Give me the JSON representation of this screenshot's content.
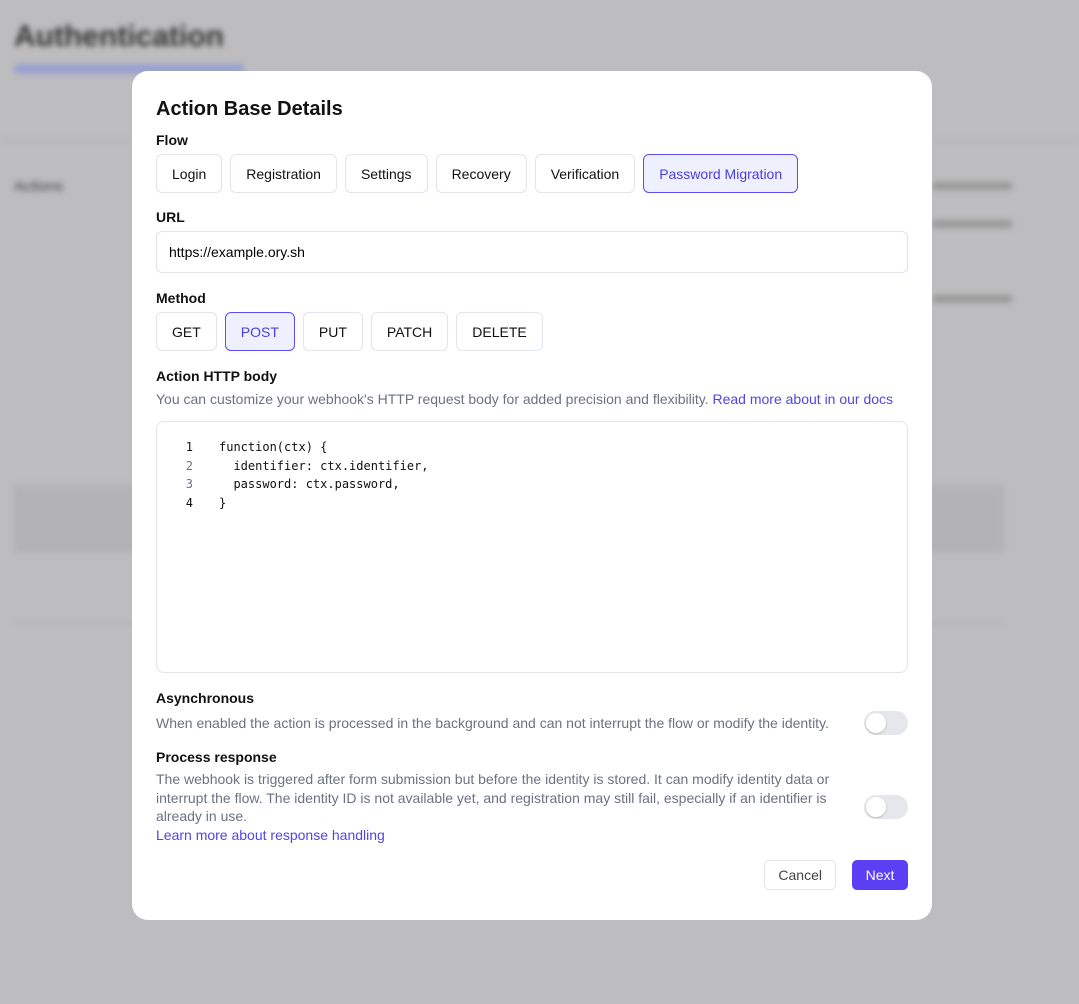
{
  "background": {
    "title": "Authentication",
    "section": "Actions"
  },
  "modal": {
    "title": "Action Base Details",
    "flow_label": "Flow",
    "flows": [
      "Login",
      "Registration",
      "Settings",
      "Recovery",
      "Verification",
      "Password Migration"
    ],
    "selected_flow": "Password Migration",
    "url_label": "URL",
    "url_value": "https://example.ory.sh",
    "method_label": "Method",
    "methods": [
      "GET",
      "POST",
      "PUT",
      "PATCH",
      "DELETE"
    ],
    "selected_method": "POST",
    "body_label": "Action HTTP body",
    "body_desc": "You can customize your webhook's HTTP request body for added precision and flexibility.",
    "body_link": "Read more about in our docs",
    "code_lines": [
      "function(ctx) {",
      "  identifier: ctx.identifier,",
      "  password: ctx.password,",
      "}"
    ],
    "async_label": "Asynchronous",
    "async_desc": "When enabled the action is processed in the background and can not interrupt the flow or modify the identity.",
    "async_enabled": false,
    "process_label": "Process response",
    "process_desc": "The webhook is triggered after form submission but before the identity is stored. It can modify identity data or interrupt the flow. The identity ID is not available yet, and registration may still fail, especially if an identifier is already in use.",
    "process_link": "Learn more about response handling",
    "process_enabled": false,
    "cancel": "Cancel",
    "next": "Next"
  },
  "colors": {
    "accent": "#5b4cf5",
    "link": "#4f46e5"
  }
}
